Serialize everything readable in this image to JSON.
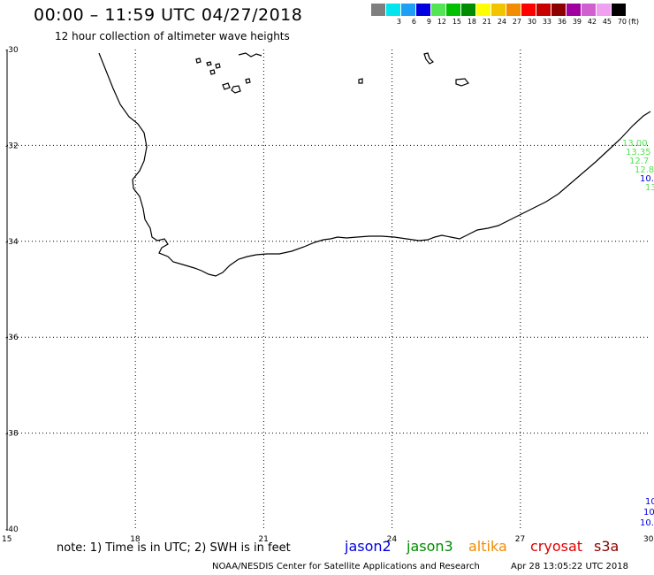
{
  "header": {
    "title": "00:00 – 11:59 UTC 04/27/2018",
    "subtitle": "12 hour collection of altimeter wave heights"
  },
  "color_scale": {
    "unit": "(ft)",
    "entries": [
      {
        "label": "",
        "color": "#7f7f7f"
      },
      {
        "label": "3",
        "color": "#00e5ee"
      },
      {
        "label": "6",
        "color": "#1e9ef5"
      },
      {
        "label": "9",
        "color": "#0000e0"
      },
      {
        "label": "12",
        "color": "#53e553"
      },
      {
        "label": "15",
        "color": "#00c000"
      },
      {
        "label": "18",
        "color": "#008c00"
      },
      {
        "label": "21",
        "color": "#ffff00"
      },
      {
        "label": "24",
        "color": "#f2c400"
      },
      {
        "label": "27",
        "color": "#f28c00"
      },
      {
        "label": "30",
        "color": "#ff0000"
      },
      {
        "label": "33",
        "color": "#c80000"
      },
      {
        "label": "36",
        "color": "#8c0000"
      },
      {
        "label": "39",
        "color": "#a000a0"
      },
      {
        "label": "42",
        "color": "#d060d0"
      },
      {
        "label": "45",
        "color": "#f0a0f0"
      },
      {
        "label": "70",
        "color": "#000000"
      }
    ]
  },
  "map": {
    "lat_labels": [
      "-30",
      "-32",
      "-34",
      "-36",
      "-38",
      "-40"
    ],
    "lon_labels": [
      "15",
      "18",
      "21",
      "24",
      "27",
      "30"
    ],
    "lat_range": [
      -30,
      -40
    ],
    "lon_range": [
      15,
      30
    ],
    "swh_readings": [
      {
        "text": "13.00",
        "color": "#53e553"
      },
      {
        "text": "13.35",
        "color": "#53e553"
      },
      {
        "text": "12.7",
        "color": "#53e553"
      },
      {
        "text": "12.8",
        "color": "#53e553"
      },
      {
        "text": "10.",
        "color": "#0000e0"
      },
      {
        "text": "13",
        "color": "#53e553"
      },
      {
        "text": "10",
        "color": "#0000e0"
      },
      {
        "text": "10",
        "color": "#0000e0"
      },
      {
        "text": "10.",
        "color": "#0000e0"
      }
    ]
  },
  "footer": {
    "note": "note:  1) Time is in UTC;  2) SWH is in feet",
    "satellites": [
      {
        "name": "jason2",
        "color": "#0000e0"
      },
      {
        "name": "jason3",
        "color": "#008c00"
      },
      {
        "name": "altika",
        "color": "#f28c00"
      },
      {
        "name": "cryosat",
        "color": "#e00000"
      },
      {
        "name": "s3a",
        "color": "#8c0000"
      }
    ],
    "credit": "NOAA/NESDIS Center for Satellite Applications and Research",
    "timestamp": "Apr 28 13:05:22 UTC 2018"
  }
}
